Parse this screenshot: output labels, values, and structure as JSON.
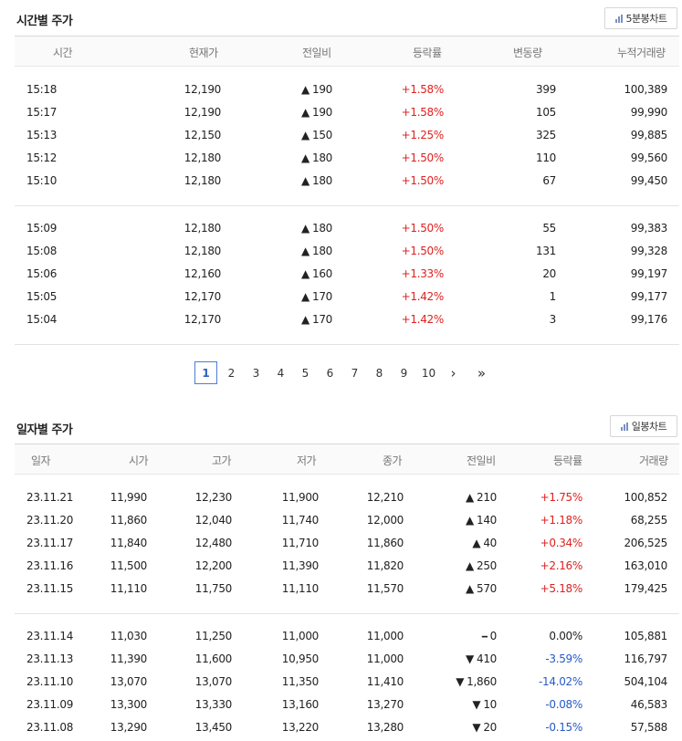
{
  "hourly": {
    "title": "시간별 주가",
    "chart_button": "5분봉차트",
    "headers": [
      "시간",
      "현재가",
      "전일비",
      "등락률",
      "변동량",
      "누적거래량"
    ],
    "group1": [
      {
        "time": "15:18",
        "price": "12,190",
        "dir": "up",
        "change": "190",
        "rate": "+1.58%",
        "vol": "399",
        "acc": "100,389"
      },
      {
        "time": "15:17",
        "price": "12,190",
        "dir": "up",
        "change": "190",
        "rate": "+1.58%",
        "vol": "105",
        "acc": "99,990"
      },
      {
        "time": "15:13",
        "price": "12,150",
        "dir": "up",
        "change": "150",
        "rate": "+1.25%",
        "vol": "325",
        "acc": "99,885"
      },
      {
        "time": "15:12",
        "price": "12,180",
        "dir": "up",
        "change": "180",
        "rate": "+1.50%",
        "vol": "110",
        "acc": "99,560"
      },
      {
        "time": "15:10",
        "price": "12,180",
        "dir": "up",
        "change": "180",
        "rate": "+1.50%",
        "vol": "67",
        "acc": "99,450"
      }
    ],
    "group2": [
      {
        "time": "15:09",
        "price": "12,180",
        "dir": "up",
        "change": "180",
        "rate": "+1.50%",
        "vol": "55",
        "acc": "99,383"
      },
      {
        "time": "15:08",
        "price": "12,180",
        "dir": "up",
        "change": "180",
        "rate": "+1.50%",
        "vol": "131",
        "acc": "99,328"
      },
      {
        "time": "15:06",
        "price": "12,160",
        "dir": "up",
        "change": "160",
        "rate": "+1.33%",
        "vol": "20",
        "acc": "99,197"
      },
      {
        "time": "15:05",
        "price": "12,170",
        "dir": "up",
        "change": "170",
        "rate": "+1.42%",
        "vol": "1",
        "acc": "99,177"
      },
      {
        "time": "15:04",
        "price": "12,170",
        "dir": "up",
        "change": "170",
        "rate": "+1.42%",
        "vol": "3",
        "acc": "99,176"
      }
    ]
  },
  "pagination": {
    "pages": [
      "1",
      "2",
      "3",
      "4",
      "5",
      "6",
      "7",
      "8",
      "9",
      "10"
    ],
    "current": "1",
    "next": "›",
    "last": "»"
  },
  "daily": {
    "title": "일자별 주가",
    "chart_button": "일봉차트",
    "headers": [
      "일자",
      "시가",
      "고가",
      "저가",
      "종가",
      "전일비",
      "등락률",
      "거래량"
    ],
    "group1": [
      {
        "date": "23.11.21",
        "open": "11,990",
        "high": "12,230",
        "low": "11,900",
        "close": "12,210",
        "dir": "up",
        "change": "210",
        "rate": "+1.75%",
        "vol": "100,852"
      },
      {
        "date": "23.11.20",
        "open": "11,860",
        "high": "12,040",
        "low": "11,740",
        "close": "12,000",
        "dir": "up",
        "change": "140",
        "rate": "+1.18%",
        "vol": "68,255"
      },
      {
        "date": "23.11.17",
        "open": "11,840",
        "high": "12,480",
        "low": "11,710",
        "close": "11,860",
        "dir": "up",
        "change": "40",
        "rate": "+0.34%",
        "vol": "206,525"
      },
      {
        "date": "23.11.16",
        "open": "11,500",
        "high": "12,200",
        "low": "11,390",
        "close": "11,820",
        "dir": "up",
        "change": "250",
        "rate": "+2.16%",
        "vol": "163,010"
      },
      {
        "date": "23.11.15",
        "open": "11,110",
        "high": "11,750",
        "low": "11,110",
        "close": "11,570",
        "dir": "up",
        "change": "570",
        "rate": "+5.18%",
        "vol": "179,425"
      }
    ],
    "group2": [
      {
        "date": "23.11.14",
        "open": "11,030",
        "high": "11,250",
        "low": "11,000",
        "close": "11,000",
        "dir": "flat",
        "change": "0",
        "rate": "0.00%",
        "vol": "105,881"
      },
      {
        "date": "23.11.13",
        "open": "11,390",
        "high": "11,600",
        "low": "10,950",
        "close": "11,000",
        "dir": "down",
        "change": "410",
        "rate": "-3.59%",
        "vol": "116,797"
      },
      {
        "date": "23.11.10",
        "open": "13,070",
        "high": "13,070",
        "low": "11,350",
        "close": "11,410",
        "dir": "down",
        "change": "1,860",
        "rate": "-14.02%",
        "vol": "504,104"
      },
      {
        "date": "23.11.09",
        "open": "13,300",
        "high": "13,330",
        "low": "13,160",
        "close": "13,270",
        "dir": "down",
        "change": "10",
        "rate": "-0.08%",
        "vol": "46,583"
      },
      {
        "date": "23.11.08",
        "open": "13,290",
        "high": "13,450",
        "low": "13,220",
        "close": "13,280",
        "dir": "down",
        "change": "20",
        "rate": "-0.15%",
        "vol": "57,588"
      }
    ]
  },
  "colors": {
    "up": "#e02020",
    "down": "#2659c9",
    "flat": "#222222"
  },
  "icons": {
    "chart_button_icon": "bar-chart-icon",
    "up_marker": "triangle-up-icon",
    "down_marker": "triangle-down-icon",
    "flat_marker": "dash-icon"
  }
}
